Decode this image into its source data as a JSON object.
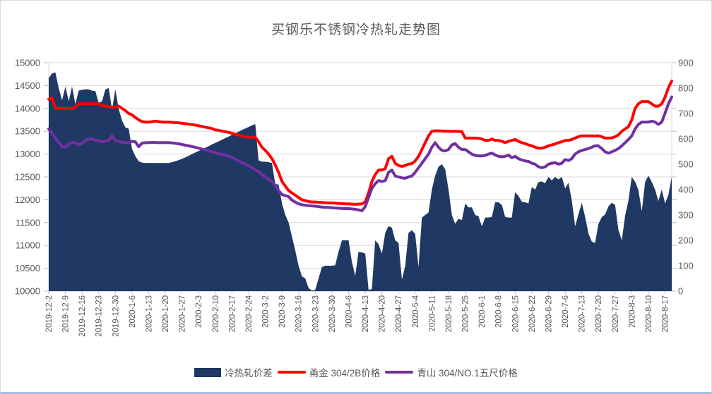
{
  "chart_data": {
    "type": "line",
    "title": "买钢乐不锈钢冷热轧走势图",
    "legend_position": "bottom",
    "grid": true,
    "left_axis": {
      "min": 10000,
      "max": 15000,
      "step": 500
    },
    "right_axis": {
      "min": 0,
      "max": 900,
      "step": 100
    },
    "colors": {
      "grid": "#d9d9d9",
      "axis_line": "#bfbfbf",
      "axis_text": "#595959",
      "title_text": "#595959"
    },
    "x_labels": [
      "2019-12-2",
      "2019-12-9",
      "2019-12-16",
      "2019-12-23",
      "2019-12-30",
      "2020-1-6",
      "2020-1-13",
      "2020-1-20",
      "2020-1-27",
      "2020-2-3",
      "2020-2-10",
      "2020-2-17",
      "2020-2-24",
      "2020-3-2",
      "2020-3-9",
      "2020-3-16",
      "2020-3-23",
      "2020-3-30",
      "2020-4-6",
      "2020-4-13",
      "2020-4-20",
      "2020-4-27",
      "2020-5-4",
      "2020-5-11",
      "2020-5-18",
      "2020-5-25",
      "2020-6-1",
      "2020-6-8",
      "2020-6-15",
      "2020-6-22",
      "2020-6-29",
      "2020-7-6",
      "2020-7-13",
      "2020-7-20",
      "2020-7-27",
      "2020-8-3",
      "2020-8-10",
      "2020-8-17"
    ],
    "points_per_label": 5,
    "series": [
      {
        "name": "冷热轧价差",
        "type": "area",
        "axis": "right",
        "color": "#1f3864",
        "values": [
          840,
          858,
          862,
          800,
          752,
          806,
          748,
          806,
          737,
          790,
          793,
          795,
          795,
          790,
          788,
          742,
          748,
          795,
          800,
          716,
          795,
          718,
          672,
          645,
          640,
          560,
          532,
          512,
          506,
          505,
          505,
          505,
          505,
          505,
          505,
          505,
          505,
          508,
          512,
          516,
          521,
          527,
          533,
          540,
          546,
          552,
          559,
          565,
          571,
          578,
          584,
          590,
          597,
          603,
          609,
          616,
          622,
          628,
          635,
          641,
          647,
          653,
          658,
          515,
          510,
          510,
          508,
          505,
          422,
          420,
          345,
          300,
          270,
          215,
          160,
          100,
          58,
          50,
          12,
          2,
          5,
          50,
          95,
          100,
          100,
          100,
          102,
          155,
          200,
          200,
          200,
          115,
          60,
          155,
          152,
          148,
          5,
          8,
          200,
          185,
          148,
          230,
          256,
          250,
          200,
          190,
          45,
          100,
          230,
          240,
          225,
          95,
          290,
          300,
          310,
          400,
          455,
          490,
          500,
          480,
          400,
          300,
          265,
          285,
          280,
          345,
          330,
          330,
          300,
          295,
          255,
          290,
          290,
          292,
          350,
          350,
          340,
          292,
          290,
          290,
          390,
          375,
          352,
          350,
          345,
          410,
          400,
          430,
          432,
          425,
          450,
          436,
          450,
          440,
          450,
          405,
          427,
          357,
          255,
          302,
          348,
          292,
          227,
          195,
          190,
          264,
          292,
          302,
          334,
          348,
          340,
          241,
          200,
          297,
          357,
          450,
          431,
          399,
          315,
          430,
          455,
          430,
          400,
          355,
          400,
          345,
          380,
          450
        ]
      },
      {
        "name": "甬金 304/2B价格",
        "type": "line",
        "axis": "left",
        "color": "#ff0000",
        "values": [
          14200,
          14230,
          14000,
          14000,
          14000,
          14000,
          14000,
          14000,
          14020,
          14100,
          14100,
          14100,
          14100,
          14100,
          14100,
          14100,
          14060,
          14050,
          14040,
          14030,
          14020,
          14050,
          14000,
          13950,
          13890,
          13860,
          13800,
          13750,
          13710,
          13700,
          13700,
          13710,
          13720,
          13710,
          13700,
          13700,
          13700,
          13695,
          13690,
          13685,
          13675,
          13665,
          13655,
          13645,
          13635,
          13620,
          13605,
          13590,
          13575,
          13560,
          13530,
          13520,
          13505,
          13490,
          13475,
          13455,
          13435,
          13415,
          13395,
          13375,
          13370,
          13370,
          13370,
          13270,
          13150,
          13080,
          13000,
          12900,
          12760,
          12600,
          12400,
          12300,
          12200,
          12150,
          12100,
          12050,
          12000,
          11980,
          11960,
          11950,
          11950,
          11945,
          11940,
          11935,
          11930,
          11930,
          11925,
          11920,
          11915,
          11910,
          11910,
          11905,
          11900,
          11905,
          11910,
          11950,
          12150,
          12400,
          12550,
          12650,
          12650,
          12680,
          12900,
          12950,
          12800,
          12750,
          12730,
          12750,
          12780,
          12790,
          12850,
          12950,
          13100,
          13250,
          13400,
          13500,
          13510,
          13510,
          13505,
          13500,
          13500,
          13500,
          13500,
          13495,
          13490,
          13350,
          13350,
          13350,
          13350,
          13345,
          13330,
          13300,
          13300,
          13330,
          13300,
          13300,
          13280,
          13250,
          13280,
          13300,
          13320,
          13280,
          13250,
          13230,
          13200,
          13180,
          13150,
          13130,
          13130,
          13150,
          13180,
          13200,
          13220,
          13250,
          13270,
          13300,
          13300,
          13320,
          13350,
          13380,
          13400,
          13400,
          13400,
          13400,
          13395,
          13400,
          13380,
          13350,
          13350,
          13355,
          13380,
          13420,
          13500,
          13550,
          13600,
          13750,
          14000,
          14100,
          14150,
          14150,
          14150,
          14100,
          14050,
          14050,
          14100,
          14250,
          14450,
          14600
        ]
      },
      {
        "name": "青山 304/NO.1五尺价格",
        "type": "line",
        "axis": "left",
        "color": "#7030a0",
        "values": [
          13550,
          13450,
          13350,
          13250,
          13160,
          13150,
          13220,
          13250,
          13250,
          13200,
          13240,
          13300,
          13330,
          13330,
          13300,
          13300,
          13270,
          13280,
          13300,
          13400,
          13300,
          13270,
          13260,
          13250,
          13250,
          13280,
          13270,
          13160,
          13240,
          13250,
          13250,
          13255,
          13255,
          13250,
          13250,
          13250,
          13250,
          13245,
          13235,
          13225,
          13210,
          13195,
          13180,
          13165,
          13150,
          13130,
          13110,
          13090,
          13070,
          13050,
          13030,
          13010,
          12990,
          12970,
          12950,
          12930,
          12890,
          12850,
          12815,
          12780,
          12740,
          12700,
          12655,
          12620,
          12550,
          12500,
          12450,
          12400,
          12320,
          12200,
          12115,
          12090,
          12070,
          11990,
          11950,
          11910,
          11890,
          11880,
          11870,
          11865,
          11860,
          11850,
          11840,
          11835,
          11830,
          11825,
          11820,
          11815,
          11810,
          11805,
          11805,
          11800,
          11790,
          11780,
          11760,
          11850,
          12050,
          12250,
          12350,
          12420,
          12400,
          12420,
          12600,
          12650,
          12520,
          12500,
          12480,
          12470,
          12500,
          12520,
          12600,
          12700,
          12800,
          12900,
          13000,
          13150,
          13250,
          13150,
          13080,
          13070,
          13100,
          13200,
          13230,
          13150,
          13100,
          13100,
          13050,
          13000,
          12970,
          12960,
          12960,
          12970,
          13000,
          13020,
          12980,
          12950,
          12940,
          12950,
          12980,
          12920,
          12950,
          12900,
          12870,
          12850,
          12840,
          12800,
          12780,
          12720,
          12700,
          12720,
          12780,
          12800,
          12810,
          12780,
          12800,
          12880,
          12860,
          12900,
          13000,
          13050,
          13080,
          13100,
          13120,
          13150,
          13180,
          13180,
          13120,
          13050,
          13020,
          13050,
          13080,
          13120,
          13180,
          13250,
          13320,
          13400,
          13550,
          13650,
          13700,
          13700,
          13700,
          13720,
          13700,
          13650,
          13700,
          13900,
          14100,
          14250
        ]
      }
    ]
  }
}
